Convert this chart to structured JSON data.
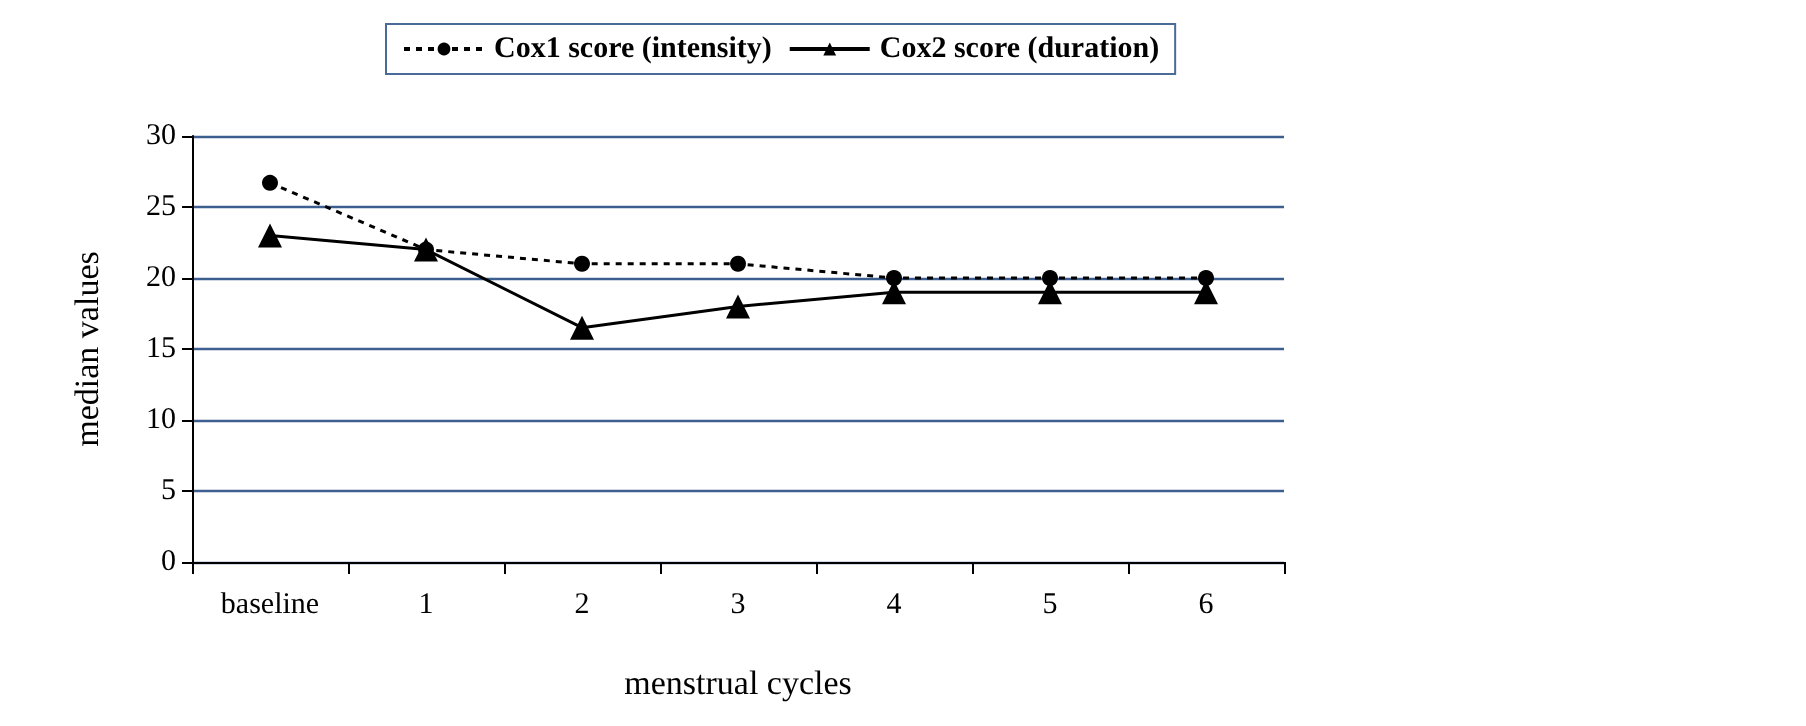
{
  "chart_data": {
    "type": "line",
    "xlabel": "menstrual cycles",
    "ylabel": "median values",
    "categories": [
      "baseline",
      "1",
      "2",
      "3",
      "4",
      "5",
      "6"
    ],
    "series": [
      {
        "name": "Cox1 score (intensity)",
        "color": "#000000",
        "marker": "circle",
        "line_style": "dotted",
        "values": [
          26.7,
          22,
          21,
          21,
          20,
          20,
          20
        ]
      },
      {
        "name": "Cox2 score (duration)",
        "color": "#000000",
        "marker": "triangle",
        "line_style": "solid",
        "values": [
          23,
          22,
          16.5,
          18,
          19,
          19,
          19
        ]
      }
    ],
    "ylim": [
      0,
      30
    ],
    "yticks": [
      0,
      5,
      10,
      15,
      20,
      25,
      30
    ],
    "grid": "y",
    "legend": "top"
  }
}
